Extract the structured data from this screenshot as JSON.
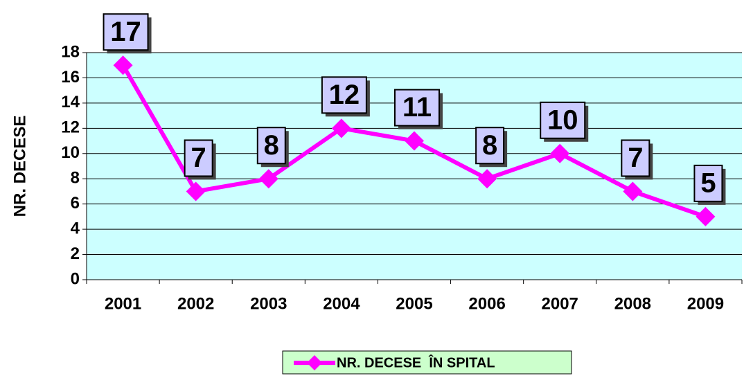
{
  "chart_data": {
    "type": "line",
    "y_label": "NR. DECESE",
    "categories": [
      "2001",
      "2002",
      "2003",
      "2004",
      "2005",
      "2006",
      "2007",
      "2008",
      "2009"
    ],
    "series": [
      {
        "name": "NR. DECESE  ÎN SPITAL",
        "color": "#ff00ff",
        "values": [
          17,
          7,
          8,
          12,
          11,
          8,
          10,
          7,
          5
        ]
      }
    ],
    "ylim": [
      0,
      18
    ],
    "yticks": [
      0,
      2,
      4,
      6,
      8,
      10,
      12,
      14,
      16,
      18
    ],
    "grid": true,
    "plot_background": "#ccffff",
    "label_box_color": "#ccccff",
    "legend_background": "#ccffcc",
    "legend": "bottom"
  }
}
